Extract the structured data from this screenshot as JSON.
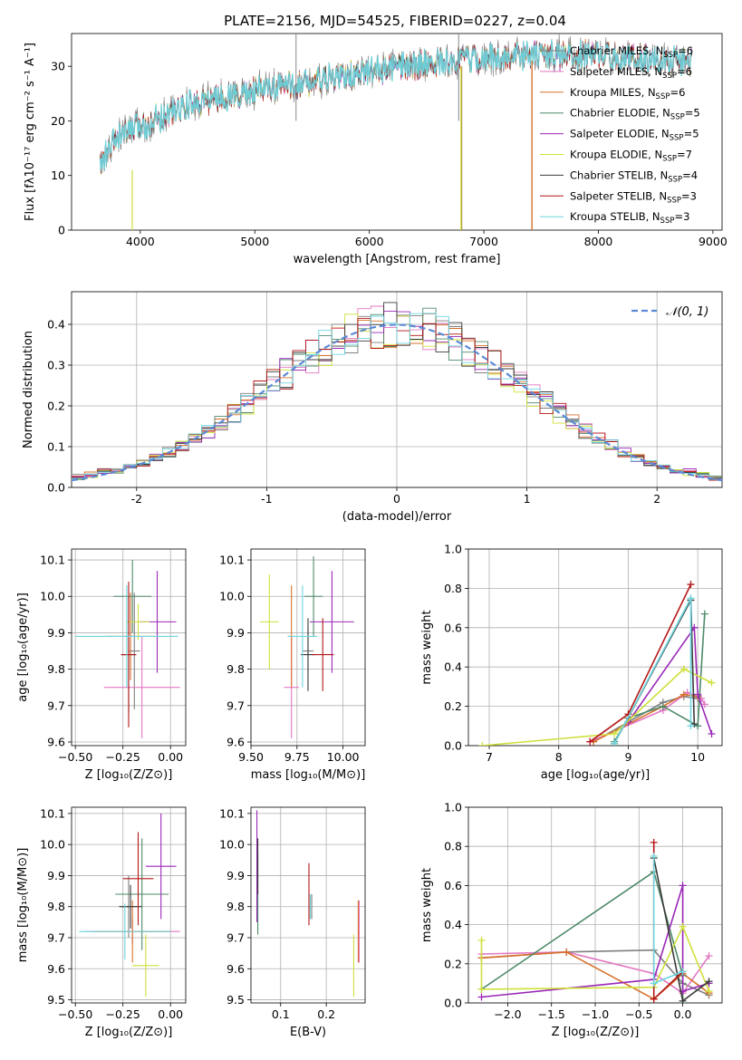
{
  "figure": {
    "title": "PLATE=2156, MJD=54525, FIBERID=0227, z=0.04"
  },
  "colors": {
    "Chabrier MILES": "#7f7f7f",
    "Salpeter MILES": "#e377c2",
    "Kroupa MILES": "#d8702a",
    "Chabrier ELODIE": "#4e8a6a",
    "Salpeter ELODIE": "#9b28b8",
    "Kroupa ELODIE": "#cfe03a",
    "Chabrier STELIB": "#3b3b3b",
    "Salpeter STELIB": "#b41616",
    "Kroupa STELIB": "#6dd6e0",
    "normal_curve": "#5b8ad6"
  },
  "chart_data": [
    {
      "id": "spectrum",
      "type": "line",
      "xlabel": "wavelength [Angstrom, rest frame]",
      "ylabel": "Flux [fλ10⁻¹⁷ erg cm⁻² s⁻¹ A⁻¹]",
      "xlim": [
        3400,
        9080
      ],
      "ylim": [
        0,
        36
      ],
      "xticks": [
        4000,
        5000,
        6000,
        7000,
        8000,
        9000
      ],
      "yticks": [
        0,
        10,
        20,
        30
      ],
      "grid": false,
      "legend_position": "top-right",
      "continuum": {
        "x": [
          3650,
          3800,
          4000,
          4200,
          4500,
          5000,
          5500,
          6000,
          6500,
          7000,
          7400,
          8000,
          8800
        ],
        "y": [
          12,
          17,
          19,
          21,
          23.5,
          25.5,
          27,
          29,
          30.5,
          31.5,
          32,
          32,
          31
        ]
      },
      "spikes": [
        {
          "x": 5360,
          "y": 36
        },
        {
          "x": 6780,
          "y": 36
        }
      ],
      "dips": [
        {
          "x": 3930,
          "y": 0
        },
        {
          "x": 6800,
          "y": 0
        },
        {
          "x": 7420,
          "y": 0
        }
      ],
      "series": [
        {
          "name": "Chabrier MILES, N_SSP=6",
          "label": "Chabrier MILES, N",
          "sub": "SSP",
          "n": "=6"
        },
        {
          "name": "Salpeter MILES, N_SSP=6",
          "label": "Salpeter MILES, N",
          "sub": "SSP",
          "n": "=6"
        },
        {
          "name": "Kroupa MILES, N_SSP=6",
          "label": "Kroupa MILES, N",
          "sub": "SSP",
          "n": "=6"
        },
        {
          "name": "Chabrier ELODIE, N_SSP=5",
          "label": "Chabrier ELODIE, N",
          "sub": "SSP",
          "n": "=5"
        },
        {
          "name": "Salpeter ELODIE, N_SSP=5",
          "label": "Salpeter ELODIE, N",
          "sub": "SSP",
          "n": "=5"
        },
        {
          "name": "Kroupa ELODIE, N_SSP=7",
          "label": "Kroupa ELODIE, N",
          "sub": "SSP",
          "n": "=7"
        },
        {
          "name": "Chabrier STELIB, N_SSP=4",
          "label": "Chabrier STELIB, N",
          "sub": "SSP",
          "n": "=4"
        },
        {
          "name": "Salpeter STELIB, N_SSP=3",
          "label": "Salpeter STELIB, N",
          "sub": "SSP",
          "n": "=3"
        },
        {
          "name": "Kroupa STELIB, N_SSP=3",
          "label": "Kroupa STELIB, N",
          "sub": "SSP",
          "n": "=3"
        }
      ]
    },
    {
      "id": "residuals",
      "type": "bar",
      "xlabel": "(data-model)/error",
      "ylabel": "Normed distribution",
      "xlim": [
        -2.5,
        2.5
      ],
      "ylim": [
        0,
        0.48
      ],
      "xticks": [
        -2,
        -1,
        0,
        1,
        2
      ],
      "yticks": [
        0.0,
        0.1,
        0.2,
        0.3,
        0.4
      ],
      "grid": true,
      "bin_width": 0.1,
      "legend": "𝒩(0, 1)",
      "legend_position": "top-right",
      "normal": {
        "mean": 0,
        "sigma": 1
      }
    },
    {
      "id": "age_vs_Z",
      "type": "scatter",
      "xlabel": "Z [log₁₀(Z/Z⊙)]",
      "ylabel": "age  [log₁₀(age/yr)]",
      "xlim": [
        -0.52,
        0.08
      ],
      "ylim": [
        9.59,
        10.13
      ],
      "xticks": [
        -0.5,
        -0.25,
        0.0
      ],
      "xticklabels": [
        "−0.50",
        "−0.25",
        "0.00"
      ],
      "yticks": [
        9.6,
        9.7,
        9.8,
        9.9,
        10.0,
        10.1
      ],
      "grid": true,
      "points": [
        {
          "series": "Chabrier MILES",
          "x": -0.19,
          "y": 9.85,
          "xerr": 0.03,
          "yerr": 0.16
        },
        {
          "series": "Salpeter MILES",
          "x": -0.15,
          "y": 9.75,
          "xerr": 0.2,
          "yerr": 0.14
        },
        {
          "series": "Kroupa MILES",
          "x": -0.21,
          "y": 9.89,
          "xerr": 0.13,
          "yerr": 0.12
        },
        {
          "series": "Chabrier ELODIE",
          "x": -0.2,
          "y": 10.0,
          "xerr": 0.1,
          "yerr": 0.1
        },
        {
          "series": "Salpeter ELODIE",
          "x": -0.07,
          "y": 9.93,
          "xerr": 0.1,
          "yerr": 0.14
        },
        {
          "series": "Kroupa ELODIE",
          "x": -0.17,
          "y": 9.93,
          "xerr": 0.06,
          "yerr": 0.05
        },
        {
          "series": "Chabrier STELIB",
          "x": -0.22,
          "y": 9.84,
          "xerr": 0.04,
          "yerr": 0.16
        },
        {
          "series": "Salpeter STELIB",
          "x": -0.22,
          "y": 9.84,
          "xerr": 0.04,
          "yerr": 0.2
        },
        {
          "series": "Kroupa STELIB",
          "x": -0.23,
          "y": 9.89,
          "xerr": 0.27,
          "yerr": 0.14
        }
      ]
    },
    {
      "id": "age_vs_mass",
      "type": "scatter",
      "xlabel": "mass [log₁₀(M/M⊙)]",
      "ylabel": "",
      "xlim": [
        9.5,
        10.12
      ],
      "ylim": [
        9.59,
        10.13
      ],
      "xticks": [
        9.5,
        9.75,
        10.0
      ],
      "xticklabels": [
        "9.50",
        "9.75",
        "10.00"
      ],
      "yticks": [
        9.6,
        9.7,
        9.8,
        9.9,
        10.0,
        10.1
      ],
      "grid": true,
      "points": [
        {
          "series": "Chabrier MILES",
          "x": 9.81,
          "y": 9.85,
          "xerr": 0.03,
          "yerr": 0.06
        },
        {
          "series": "Salpeter MILES",
          "x": 9.72,
          "y": 9.75,
          "xerr": 0.04,
          "yerr": 0.14
        },
        {
          "series": "Kroupa MILES",
          "x": 9.72,
          "y": 9.89,
          "xerr": 0.02,
          "yerr": 0.14
        },
        {
          "series": "Chabrier ELODIE",
          "x": 9.84,
          "y": 10.0,
          "xerr": 0.05,
          "yerr": 0.11
        },
        {
          "series": "Salpeter ELODIE",
          "x": 9.94,
          "y": 9.93,
          "xerr": 0.12,
          "yerr": 0.14
        },
        {
          "series": "Kroupa ELODIE",
          "x": 9.6,
          "y": 9.93,
          "xerr": 0.05,
          "yerr": 0.13
        },
        {
          "series": "Chabrier STELIB",
          "x": 9.81,
          "y": 9.84,
          "xerr": 0.04,
          "yerr": 0.1
        },
        {
          "series": "Salpeter STELIB",
          "x": 9.89,
          "y": 9.84,
          "xerr": 0.06,
          "yerr": 0.1
        },
        {
          "series": "Kroupa STELIB",
          "x": 9.78,
          "y": 9.89,
          "xerr": 0.08,
          "yerr": 0.14
        }
      ]
    },
    {
      "id": "mass_weight_vs_age",
      "type": "line",
      "xlabel": "age  [log₁₀(age/yr)]",
      "ylabel": "mass weight",
      "xlim": [
        6.7,
        10.35
      ],
      "ylim": [
        0,
        1.0
      ],
      "xticks": [
        7,
        8,
        9,
        10
      ],
      "yticks": [
        0.0,
        0.2,
        0.4,
        0.6,
        0.8,
        1.0
      ],
      "grid": true,
      "series": [
        {
          "series": "Chabrier MILES",
          "x": [
            8.5,
            9.5,
            9.8,
            10.0
          ],
          "y": [
            0.02,
            0.22,
            0.25,
            0.24
          ]
        },
        {
          "series": "Salpeter MILES",
          "x": [
            8.45,
            9.5,
            9.85,
            10.05,
            10.1
          ],
          "y": [
            0.02,
            0.18,
            0.27,
            0.24,
            0.21
          ]
        },
        {
          "series": "Kroupa MILES",
          "x": [
            8.5,
            9.5,
            9.8,
            10.0
          ],
          "y": [
            0.02,
            0.2,
            0.26,
            0.25
          ]
        },
        {
          "series": "Chabrier ELODIE",
          "x": [
            8.8,
            9.0,
            9.5,
            10.0,
            10.1
          ],
          "y": [
            0.02,
            0.14,
            0.2,
            0.1,
            0.67
          ]
        },
        {
          "series": "Salpeter ELODIE",
          "x": [
            9.0,
            9.95,
            10.0,
            10.2
          ],
          "y": [
            0.12,
            0.6,
            0.26,
            0.06
          ]
        },
        {
          "series": "Kroupa ELODIE",
          "x": [
            6.9,
            8.8,
            9.8,
            10.2
          ],
          "y": [
            0.0,
            0.06,
            0.39,
            0.32
          ]
        },
        {
          "series": "Chabrier STELIB",
          "x": [
            8.8,
            9.9,
            9.95
          ],
          "y": [
            0.01,
            0.74,
            0.11
          ]
        },
        {
          "series": "Salpeter STELIB",
          "x": [
            8.45,
            9.0,
            9.9
          ],
          "y": [
            0.02,
            0.16,
            0.82
          ]
        },
        {
          "series": "Kroupa STELIB",
          "x": [
            8.8,
            9.9,
            9.9
          ],
          "y": [
            0.01,
            0.75,
            0.1
          ]
        }
      ]
    },
    {
      "id": "mass_vs_Z",
      "type": "scatter",
      "xlabel": "Z [log₁₀(Z/Z⊙)]",
      "ylabel": "mass [log₁₀(M/M⊙)]",
      "xlim": [
        -0.52,
        0.08
      ],
      "ylim": [
        9.49,
        10.12
      ],
      "xticks": [
        -0.5,
        -0.25,
        0.0
      ],
      "xticklabels": [
        "−0.50",
        "−0.25",
        "0.00"
      ],
      "yticks": [
        9.5,
        9.6,
        9.7,
        9.8,
        9.9,
        10.0,
        10.1
      ],
      "grid": true,
      "points": [
        {
          "series": "Chabrier MILES",
          "x": -0.22,
          "y": 9.8,
          "xerr": 0.04,
          "yerr": 0.1
        },
        {
          "series": "Salpeter MILES",
          "x": -0.2,
          "y": 9.72,
          "xerr": 0.25,
          "yerr": 0.04
        },
        {
          "series": "Kroupa MILES",
          "x": -0.2,
          "y": 9.72,
          "xerr": 0.2,
          "yerr": 0.1
        },
        {
          "series": "Chabrier ELODIE",
          "x": -0.15,
          "y": 9.84,
          "xerr": 0.14,
          "yerr": 0.18
        },
        {
          "series": "Salpeter ELODIE",
          "x": -0.05,
          "y": 9.93,
          "xerr": 0.08,
          "yerr": 0.17
        },
        {
          "series": "Kroupa ELODIE",
          "x": -0.13,
          "y": 9.61,
          "xerr": 0.07,
          "yerr": 0.1
        },
        {
          "series": "Chabrier STELIB",
          "x": -0.21,
          "y": 9.8,
          "xerr": 0.06,
          "yerr": 0.07
        },
        {
          "series": "Salpeter STELIB",
          "x": -0.17,
          "y": 9.89,
          "xerr": 0.08,
          "yerr": 0.15
        },
        {
          "series": "Kroupa STELIB",
          "x": -0.24,
          "y": 9.72,
          "xerr": 0.24,
          "yerr": 0.09
        }
      ]
    },
    {
      "id": "mass_vs_ebv",
      "type": "scatter",
      "xlabel": "E(B-V)",
      "ylabel": "",
      "xlim": [
        0.035,
        0.285
      ],
      "ylim": [
        9.49,
        10.12
      ],
      "xticks": [
        0.1,
        0.2
      ],
      "xticklabels": [
        "0.1",
        "0.2"
      ],
      "yticks": [
        9.5,
        9.6,
        9.7,
        9.8,
        9.9,
        10.0,
        10.1
      ],
      "grid": true,
      "points": [
        {
          "series": "Chabrier MILES",
          "x": 0.168,
          "y": 9.8,
          "xerr": 0,
          "yerr": 0.04
        },
        {
          "series": "Salpeter MILES",
          "x": 0.272,
          "y": 9.72,
          "xerr": 0,
          "yerr": 0.1
        },
        {
          "series": "Kroupa MILES",
          "x": 0.27,
          "y": 9.72,
          "xerr": 0,
          "yerr": 0.1
        },
        {
          "series": "Chabrier ELODIE",
          "x": 0.05,
          "y": 9.84,
          "xerr": 0,
          "yerr": 0.13
        },
        {
          "series": "Salpeter ELODIE",
          "x": 0.048,
          "y": 9.93,
          "xerr": 0,
          "yerr": 0.18
        },
        {
          "series": "Kroupa ELODIE",
          "x": 0.26,
          "y": 9.61,
          "xerr": 0,
          "yerr": 0.1
        },
        {
          "series": "Chabrier STELIB",
          "x": 0.05,
          "y": 9.93,
          "xerr": 0,
          "yerr": 0.09
        },
        {
          "series": "Salpeter STELIB",
          "x": 0.162,
          "y": 9.84,
          "xerr": 0,
          "yerr": 0.1
        },
        {
          "series": "Kroupa STELIB",
          "x": 0.165,
          "y": 9.8,
          "xerr": 0,
          "yerr": 0.04
        }
      ]
    },
    {
      "id": "mass_weight_vs_Z",
      "type": "line",
      "xlabel": "Z [log₁₀(Z/Z⊙)]",
      "ylabel": "mass weight",
      "xlim": [
        -2.45,
        0.45
      ],
      "ylim": [
        0,
        1.0
      ],
      "xticks": [
        -2.0,
        -1.5,
        -1.0,
        -0.5,
        0.0
      ],
      "xticklabels": [
        "−2.0",
        "−1.5",
        "−1.0",
        "−0.5",
        "0.0"
      ],
      "yticks": [
        0.0,
        0.2,
        0.4,
        0.6,
        0.8,
        1.0
      ],
      "grid": true,
      "series": [
        {
          "series": "Chabrier MILES",
          "x": [
            -2.3,
            -1.33,
            -0.33,
            0.0,
            0.3
          ],
          "y": [
            0.23,
            0.26,
            0.27,
            0.1,
            0.04
          ]
        },
        {
          "series": "Salpeter MILES",
          "x": [
            -2.3,
            -1.33,
            -0.33,
            0.0,
            0.3
          ],
          "y": [
            0.25,
            0.26,
            0.15,
            0.05,
            0.24
          ]
        },
        {
          "series": "Kroupa MILES",
          "x": [
            -2.3,
            -1.33,
            -0.33,
            0.0,
            0.3
          ],
          "y": [
            0.23,
            0.26,
            0.02,
            0.15,
            0.05
          ]
        },
        {
          "series": "Chabrier ELODIE",
          "x": [
            -2.3,
            -0.33,
            0.0,
            0.0
          ],
          "y": [
            0.07,
            0.67,
            0.14,
            0.0
          ]
        },
        {
          "series": "Salpeter ELODIE",
          "x": [
            -2.3,
            -0.33,
            0.0,
            0.0,
            0.3
          ],
          "y": [
            0.03,
            0.12,
            0.6,
            0.06,
            0.1
          ]
        },
        {
          "series": "Kroupa ELODIE",
          "x": [
            -2.3,
            -2.3,
            -0.33,
            0.0,
            0.3
          ],
          "y": [
            0.32,
            0.07,
            0.08,
            0.39,
            0.06
          ]
        },
        {
          "series": "Chabrier STELIB",
          "x": [
            -0.33,
            0.0,
            0.3
          ],
          "y": [
            0.74,
            0.01,
            0.11
          ]
        },
        {
          "series": "Salpeter STELIB",
          "x": [
            -0.33,
            -0.33,
            0.0
          ],
          "y": [
            0.82,
            0.02,
            0.16
          ]
        },
        {
          "series": "Kroupa STELIB",
          "x": [
            -0.33,
            -0.33,
            0.0
          ],
          "y": [
            0.75,
            0.1,
            0.16
          ]
        }
      ]
    }
  ]
}
